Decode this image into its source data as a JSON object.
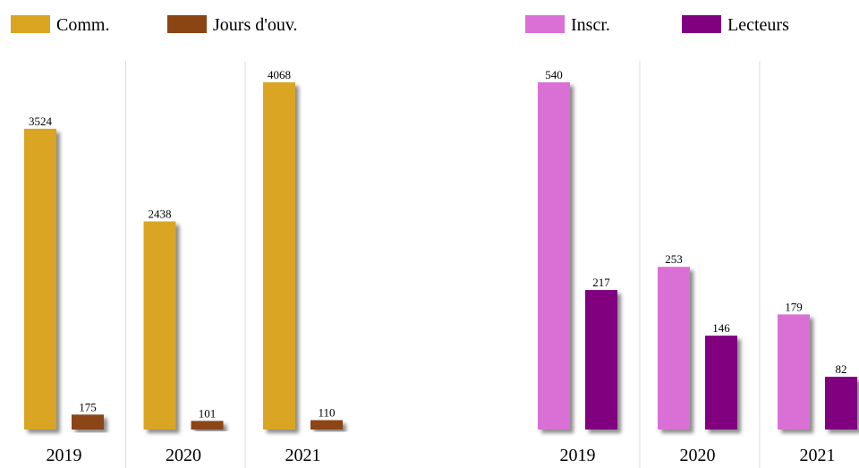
{
  "chart_data": [
    {
      "type": "bar",
      "categories": [
        "2019",
        "2020",
        "2021"
      ],
      "series": [
        {
          "name": "Comm.",
          "color": "#DAA520",
          "values": [
            3524,
            2438,
            4068
          ]
        },
        {
          "name": "Jours d'ouv.",
          "color": "#8B4513",
          "values": [
            175,
            101,
            110
          ]
        }
      ]
    },
    {
      "type": "bar",
      "categories": [
        "2019",
        "2020",
        "2021"
      ],
      "series": [
        {
          "name": "Inscr.",
          "color": "#DA70D6",
          "values": [
            540,
            253,
            179
          ]
        },
        {
          "name": "Lecteurs",
          "color": "#800080",
          "values": [
            217,
            146,
            82
          ]
        }
      ]
    }
  ]
}
